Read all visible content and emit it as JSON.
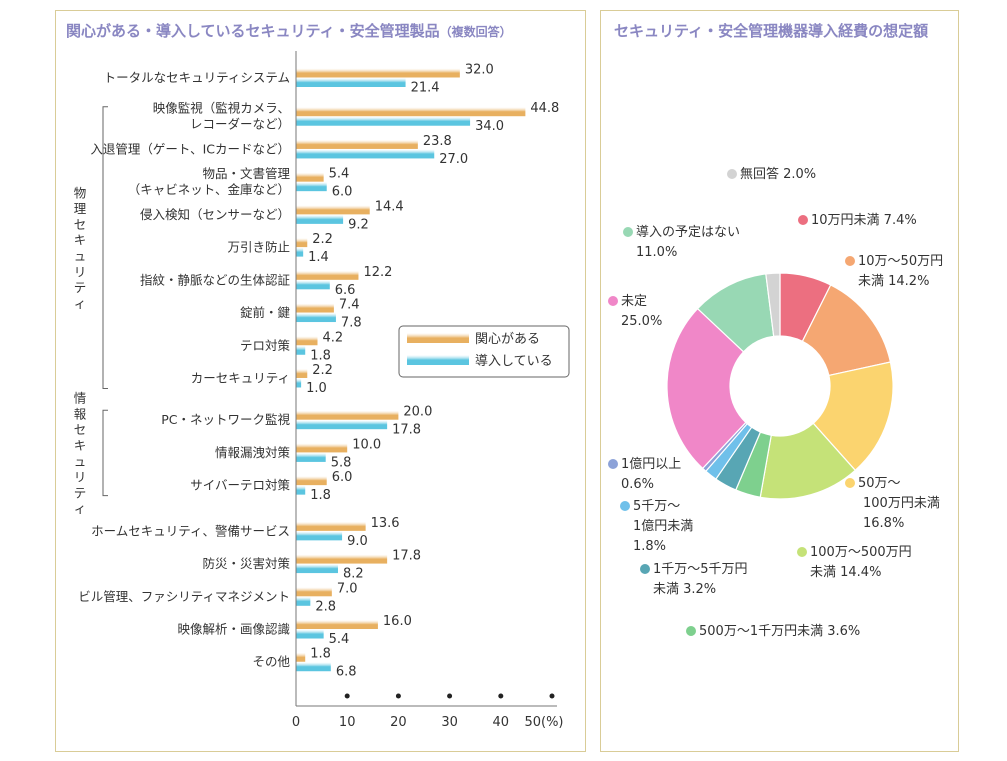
{
  "left_title": "関心がある・導入しているセキュリティ・安全管理製品",
  "left_title_note": "（複数回答）",
  "right_title": "セキュリティ・安全管理機器導入経費の想定額",
  "colors": {
    "interest": "#e8b060",
    "adopted": "#5bc5e0",
    "title": "#8a87c2",
    "border": "#d9cc97"
  },
  "chart_data": [
    {
      "type": "bar",
      "orientation": "horizontal",
      "title": "関心がある・導入しているセキュリティ・安全管理製品（複数回答）",
      "categories": [
        [
          "トータルなセキュリティシステム"
        ],
        [
          "映像監視（監視カメラ、",
          "レコーダーなど）"
        ],
        [
          "入退管理（ゲート、ICカードなど）"
        ],
        [
          "物品・文書管理",
          "（キャビネット、金庫など）"
        ],
        [
          "侵入検知（センサーなど）"
        ],
        [
          "万引き防止"
        ],
        [
          "指紋・静脈などの生体認証"
        ],
        [
          "錠前・鍵"
        ],
        [
          "テロ対策"
        ],
        [
          "カーセキュリティ"
        ],
        [
          "PC・ネットワーク監視"
        ],
        [
          "情報漏洩対策"
        ],
        [
          "サイバーテロ対策"
        ],
        [
          "ホームセキュリティ、警備サービス"
        ],
        [
          "防災・災害対策"
        ],
        [
          "ビル管理、ファシリティマネジメント"
        ],
        [
          "映像解析・画像認識"
        ],
        [
          "その他"
        ]
      ],
      "groups": [
        {
          "label": "物理セキュリティ",
          "from": 1,
          "to": 9
        },
        {
          "label": "情報セキュリティ",
          "from": 10,
          "to": 12
        }
      ],
      "series": [
        {
          "name": "関心がある",
          "values": [
            32.0,
            44.8,
            23.8,
            5.4,
            14.4,
            2.2,
            12.2,
            7.4,
            4.2,
            2.2,
            20.0,
            10.0,
            6.0,
            13.6,
            17.8,
            7.0,
            16.0,
            1.8
          ]
        },
        {
          "name": "導入している",
          "values": [
            21.4,
            34.0,
            27.0,
            6.0,
            9.2,
            1.4,
            6.6,
            7.8,
            1.8,
            1.0,
            17.8,
            5.8,
            1.8,
            9.0,
            8.2,
            2.8,
            5.4,
            6.8
          ]
        }
      ],
      "xlim": [
        0,
        50
      ],
      "xticks": [
        "0",
        "10",
        "20",
        "30",
        "40",
        "50(%)"
      ],
      "legend_position": "right-middle"
    },
    {
      "type": "pie",
      "donut": true,
      "title": "セキュリティ・安全管理機器導入経費の想定額",
      "slices": [
        {
          "label": [
            "10万円未満 7.4%"
          ],
          "value": 7.4,
          "color": "#ec6f80"
        },
        {
          "label": [
            "10万～50万円",
            "未満 14.2%"
          ],
          "value": 14.2,
          "color": "#f5a772"
        },
        {
          "label": [
            "50万～",
            "100万円未満",
            "16.8%"
          ],
          "value": 16.8,
          "color": "#fbd46f"
        },
        {
          "label": [
            "100万～500万円",
            "未満 14.4%"
          ],
          "value": 14.4,
          "color": "#c5e278"
        },
        {
          "label": [
            "500万～1千万円未満 3.6%"
          ],
          "value": 3.6,
          "color": "#7ed08e"
        },
        {
          "label": [
            "1千万～5千万円",
            "未満 3.2%"
          ],
          "value": 3.2,
          "color": "#58a6b4"
        },
        {
          "label": [
            "5千万～",
            "1億円未満",
            "1.8%"
          ],
          "value": 1.8,
          "color": "#6fc0ea"
        },
        {
          "label": [
            "1億円以上",
            "0.6%"
          ],
          "value": 0.6,
          "color": "#8ca2d8"
        },
        {
          "label": [
            "未定",
            "25.0%"
          ],
          "value": 25.0,
          "color": "#f087c8"
        },
        {
          "label": [
            "導入の予定はない",
            "11.0%"
          ],
          "value": 11.0,
          "color": "#98d8b4"
        },
        {
          "label": [
            "無回答 2.0%"
          ],
          "value": 2.0,
          "color": "#d3d3d3"
        }
      ]
    }
  ]
}
